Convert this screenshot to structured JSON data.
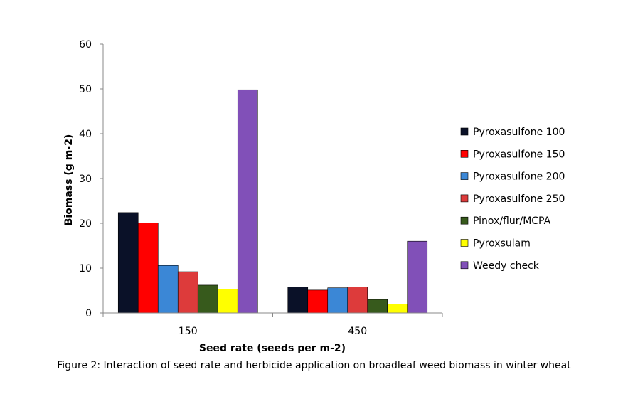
{
  "chart_data": {
    "type": "bar",
    "title": "",
    "xlabel": "Seed rate (seeds per m-2)",
    "ylabel": "Biomass (g m-2)",
    "categories": [
      "150",
      "450"
    ],
    "ylim": [
      0,
      60
    ],
    "yticks": [
      0,
      10,
      20,
      30,
      40,
      50,
      60
    ],
    "grid": false,
    "legend_position": "right",
    "series": [
      {
        "name": "Pyroxasulfone 100",
        "color": "#0a1128",
        "values": [
          22.4,
          5.8
        ]
      },
      {
        "name": "Pyroxasulfone 150",
        "color": "#ff0000",
        "values": [
          20.1,
          5.1
        ]
      },
      {
        "name": "Pyroxasulfone 200",
        "color": "#3b87d6",
        "values": [
          10.6,
          5.6
        ]
      },
      {
        "name": "Pyroxasulfone 250",
        "color": "#dd3b3b",
        "values": [
          9.2,
          5.8
        ]
      },
      {
        "name": "Pinox/flur/MCPA",
        "color": "#375a1c",
        "values": [
          6.2,
          3.0
        ]
      },
      {
        "name": "Pyroxsulam",
        "color": "#ffff00",
        "values": [
          5.3,
          2.0
        ]
      },
      {
        "name": "Weedy check",
        "color": "#8150b8",
        "values": [
          49.8,
          16.0
        ]
      }
    ]
  },
  "caption": "Figure 2: Interaction of seed rate and herbicide application on broadleaf weed biomass in winter wheat"
}
